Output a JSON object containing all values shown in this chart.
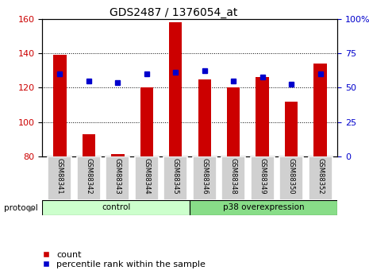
{
  "title": "GDS2487 / 1376054_at",
  "categories": [
    "GSM88341",
    "GSM88342",
    "GSM88343",
    "GSM88344",
    "GSM88345",
    "GSM88346",
    "GSM88348",
    "GSM88349",
    "GSM88350",
    "GSM88352"
  ],
  "bar_values": [
    139,
    93,
    81,
    120,
    158,
    125,
    120,
    126,
    112,
    134
  ],
  "dot_values": [
    128,
    124,
    123,
    128,
    129,
    130,
    124,
    126,
    122,
    128
  ],
  "bar_color": "#cc0000",
  "dot_color": "#0000cc",
  "ylim_left": [
    80,
    160
  ],
  "ylim_right": [
    0,
    100
  ],
  "yticks_left": [
    80,
    100,
    120,
    140,
    160
  ],
  "yticks_right": [
    0,
    25,
    50,
    75,
    100
  ],
  "ytick_labels_right": [
    "0",
    "25",
    "50",
    "75",
    "100%"
  ],
  "bg_color": "#ffffff",
  "plot_bg_color": "#ffffff",
  "control_label": "control",
  "p38_label": "p38 overexpression",
  "protocol_label": "protocol",
  "control_color": "#ccffcc",
  "p38_color": "#88dd88",
  "n_control": 5,
  "n_p38": 5,
  "legend_count": "count",
  "legend_pct": "percentile rank within the sample",
  "tick_bg_color": "#d0d0d0",
  "title_fontsize": 10,
  "axis_fontsize": 8,
  "legend_fontsize": 8,
  "bar_width": 0.45
}
